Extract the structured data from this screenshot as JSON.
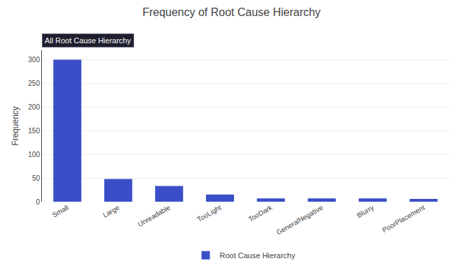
{
  "chart_data": {
    "type": "bar",
    "title": "Frequency of Root Cause Hierarchy",
    "ylabel": "Frequency",
    "annotations": [
      "All Root Cause Hierarchy"
    ],
    "categories": [
      "Small",
      "Large",
      "Unreadable",
      "TooLight",
      "TooDark",
      "GeneralNegative",
      "Blurry",
      "PoorPlacement"
    ],
    "series": [
      {
        "name": "Root Cause Hierarchy",
        "color": "#3a4fc7",
        "values": [
          300,
          48,
          33,
          15,
          7,
          7,
          7,
          6
        ]
      }
    ],
    "ylim": [
      0,
      320
    ],
    "yticks": [
      0,
      50,
      100,
      150,
      200,
      250,
      300
    ],
    "grid": true,
    "legend": "bottom"
  }
}
